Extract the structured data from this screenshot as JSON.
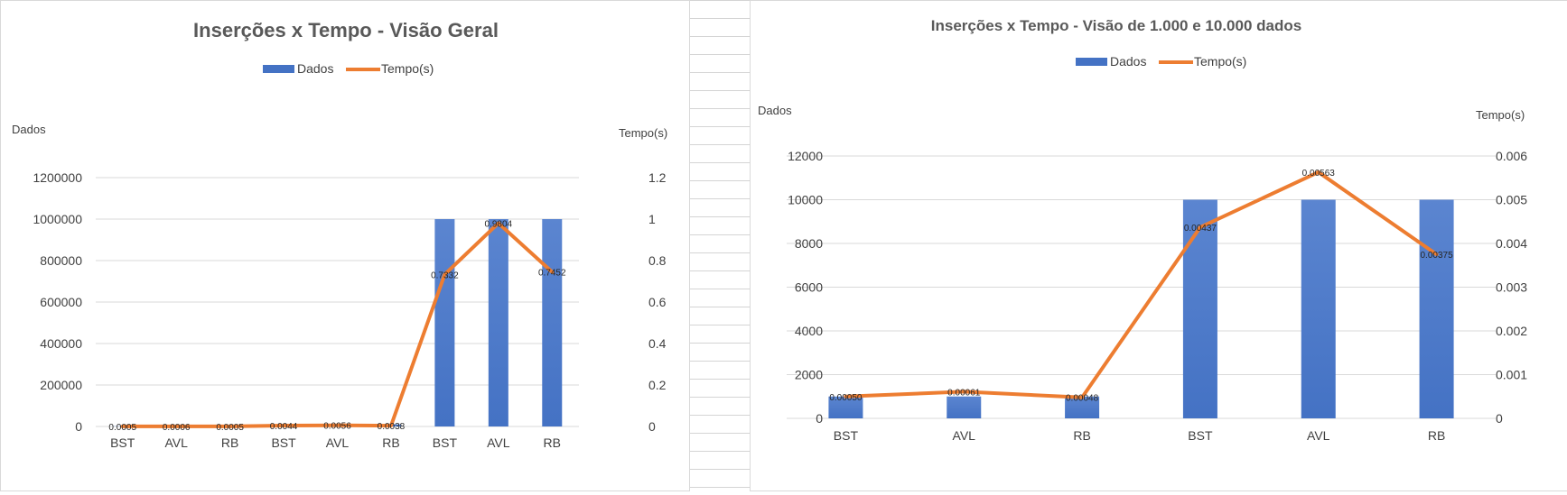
{
  "colors": {
    "bar": "#4472c4",
    "bar_light": "#5b85d0",
    "line": "#ed7d31"
  },
  "chart_data": [
    {
      "type": "bar",
      "title": "Inserções x Tempo - Visão Geral",
      "categories": [
        "BST",
        "AVL",
        "RB",
        "BST",
        "AVL",
        "RB",
        "BST",
        "AVL",
        "RB"
      ],
      "series": [
        {
          "name": "Dados",
          "type": "bar",
          "axis": "left",
          "values": [
            1000,
            1000,
            1000,
            10000,
            10000,
            10000,
            1000000,
            1000000,
            1000000
          ]
        },
        {
          "name": "Tempo(s)",
          "type": "line",
          "axis": "right",
          "values": [
            0.0005,
            0.0006,
            0.0005,
            0.0044,
            0.0056,
            0.0038,
            0.7332,
            0.9804,
            0.7452
          ],
          "labels": [
            "0.0005",
            "0.0006",
            "0.0005",
            "0.0044",
            "0.0056",
            "0.0038",
            "0.7332",
            "0.9804",
            "0.7452"
          ]
        }
      ],
      "ylabel": "Dados",
      "ylabel_right": "Tempo(s)",
      "ylim": [
        0,
        1200000
      ],
      "yticks": [
        "0",
        "200000",
        "400000",
        "600000",
        "800000",
        "1000000",
        "1200000"
      ],
      "ylim_right": [
        0,
        1.2
      ],
      "yticks_right": [
        "0",
        "0.2",
        "0.4",
        "0.6",
        "0.8",
        "1",
        "1.2"
      ],
      "legend": "top-center",
      "grid": true
    },
    {
      "type": "bar",
      "title": "Inserções x Tempo - Visão de 1.000 e 10.000 dados",
      "categories": [
        "BST",
        "AVL",
        "RB",
        "BST",
        "AVL",
        "RB"
      ],
      "series": [
        {
          "name": "Dados",
          "type": "bar",
          "axis": "left",
          "values": [
            1000,
            1000,
            1000,
            10000,
            10000,
            10000
          ]
        },
        {
          "name": "Tempo(s)",
          "type": "line",
          "axis": "right",
          "values": [
            0.0005,
            0.00061,
            0.00048,
            0.00437,
            0.00563,
            0.00375
          ],
          "labels": [
            "0.00050",
            "0.00061",
            "0.00048",
            "0.00437",
            "0.00563",
            "0.00375"
          ]
        }
      ],
      "ylabel": "Dados",
      "ylabel_right": "Tempo(s)",
      "ylim": [
        0,
        12000
      ],
      "yticks": [
        "0",
        "2000",
        "4000",
        "6000",
        "8000",
        "10000",
        "12000"
      ],
      "ylim_right": [
        0,
        0.006
      ],
      "yticks_right": [
        "0",
        "0.001",
        "0.002",
        "0.003",
        "0.004",
        "0.005",
        "0.006"
      ],
      "legend": "top-center",
      "grid": true
    }
  ]
}
